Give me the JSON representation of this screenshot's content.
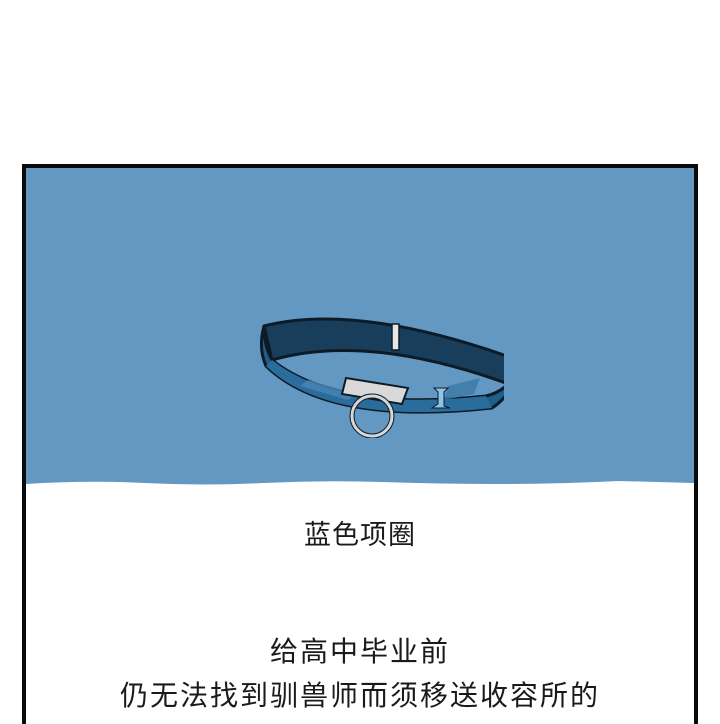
{
  "panel": {
    "sky_color": "#6398c2",
    "item_name": "蓝色项圈",
    "narration_line1": "给高中毕业前",
    "narration_line2": "仍无法找到驯兽师而须移送收容所的"
  },
  "icons": {
    "collar": "blue-collar-illustration"
  }
}
